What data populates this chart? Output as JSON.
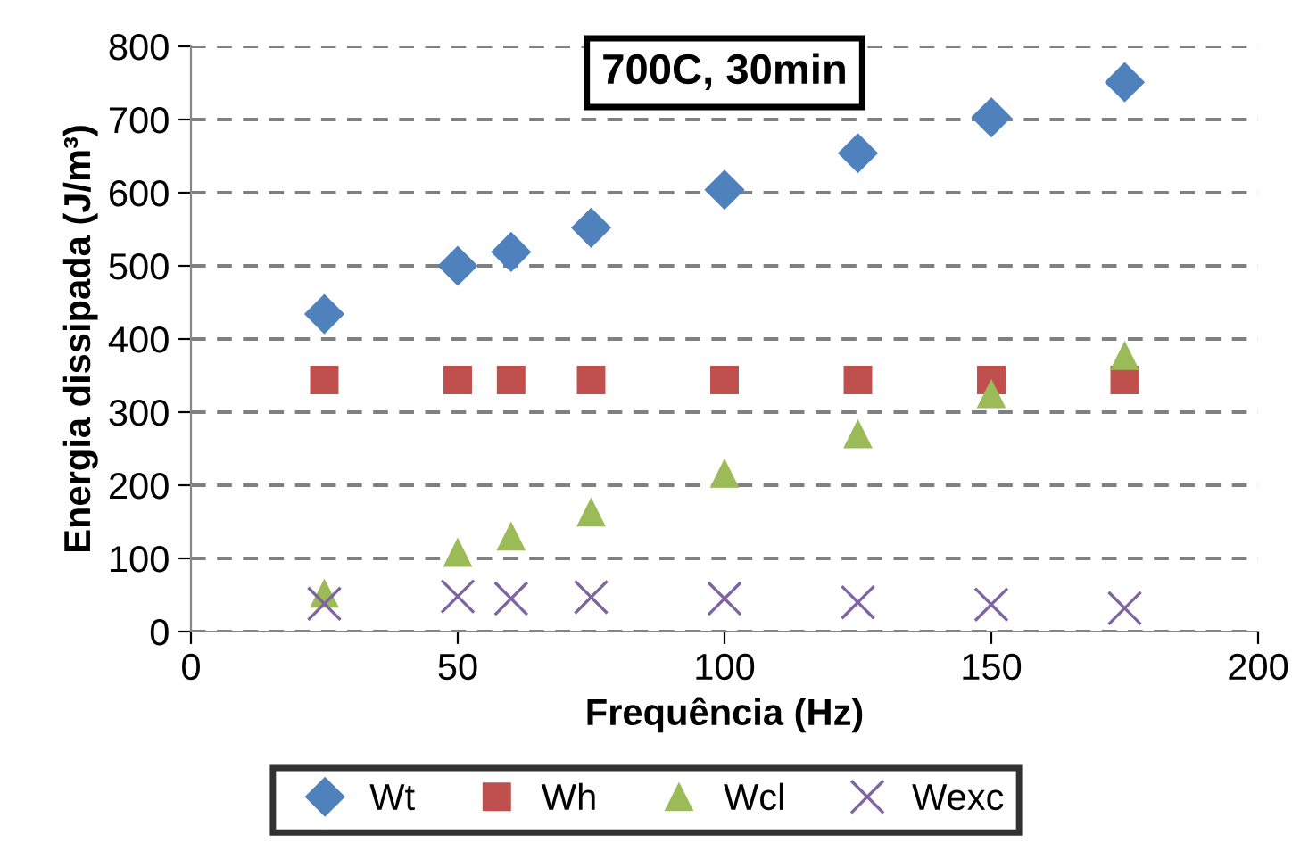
{
  "chart_data": {
    "type": "scatter",
    "title": "700C, 30min",
    "xlabel": "Frequência (Hz)",
    "ylabel": "Energia dissipada (J/m³)",
    "x": [
      25,
      50,
      60,
      75,
      100,
      125,
      150,
      175
    ],
    "series": [
      {
        "name": "Wt",
        "color": "#4f81bd",
        "marker": "diamond",
        "values": [
          434,
          500,
          519,
          552,
          604,
          654,
          703,
          751
        ]
      },
      {
        "name": "Wh",
        "color": "#c0504d",
        "marker": "square",
        "values": [
          344,
          344,
          344,
          344,
          344,
          344,
          344,
          344
        ]
      },
      {
        "name": "Wcl",
        "color": "#9bbb59",
        "marker": "triangle",
        "values": [
          52,
          108,
          130,
          163,
          216,
          270,
          325,
          377
        ]
      },
      {
        "name": "Wexc",
        "color": "#8064a2",
        "marker": "cross",
        "values": [
          38,
          48,
          45,
          47,
          45,
          40,
          37,
          32
        ]
      }
    ],
    "xlim": [
      0,
      200
    ],
    "xticks": [
      0,
      50,
      100,
      150,
      200
    ],
    "ylim": [
      0,
      800
    ],
    "yticks": [
      0,
      100,
      200,
      300,
      400,
      500,
      600,
      700,
      800
    ],
    "grid": "y",
    "legend": "bottom"
  }
}
